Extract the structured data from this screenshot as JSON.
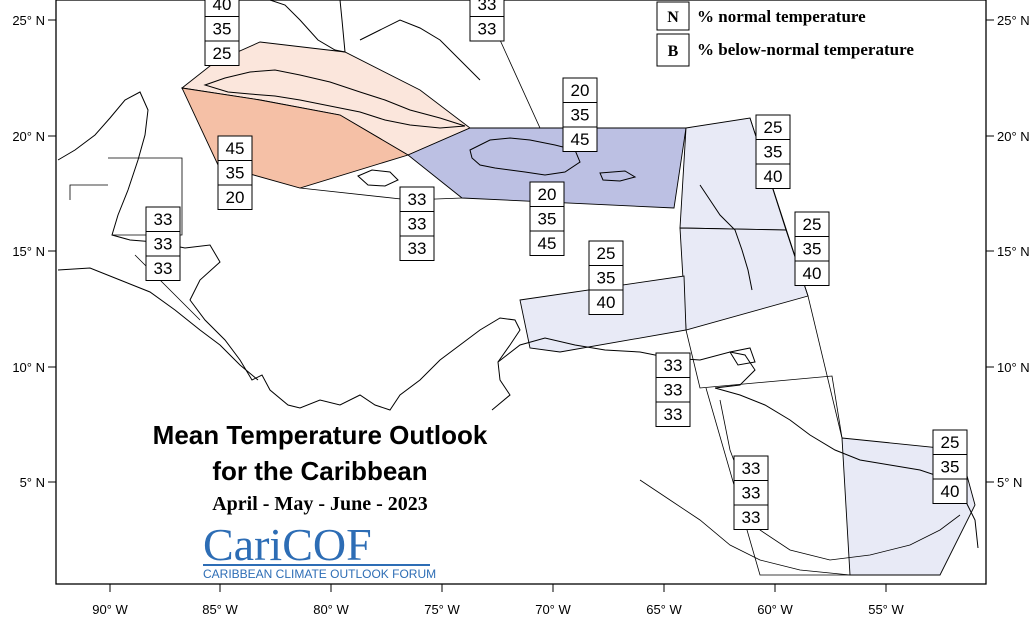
{
  "title_line1": "Mean Temperature Outlook",
  "title_line2": "for the Caribbean",
  "period": "April - May - June - 2023",
  "logo": {
    "name": "CariCOF",
    "caption": "CARIBBEAN CLIMATE OUTLOOK FORUM"
  },
  "legend": [
    {
      "key": "N",
      "label": "% normal temperature"
    },
    {
      "key": "B",
      "label": "% below-normal temperature"
    }
  ],
  "colors": {
    "above_light": "#fbe6dc",
    "above_medium": "#f5c0a6",
    "below_medium": "#bcc0e3",
    "below_light": "#e8eaf6"
  },
  "x_axis_labels": [
    "90° W",
    "85° W",
    "80° W",
    "75° W",
    "70° W",
    "65° W",
    "60° W",
    "55° W"
  ],
  "y_axis_labels": [
    "25° N",
    "20° N",
    "15° N",
    "10° N",
    "5° N"
  ],
  "probability_boxes": [
    {
      "values": [
        "40",
        "35",
        "25"
      ]
    },
    {
      "values": [
        "33",
        "33"
      ]
    },
    {
      "values": [
        "20",
        "35",
        "45"
      ]
    },
    {
      "values": [
        "45",
        "35",
        "20"
      ]
    },
    {
      "values": [
        "25",
        "35",
        "40"
      ]
    },
    {
      "values": [
        "33",
        "33",
        "33"
      ]
    },
    {
      "values": [
        "20",
        "35",
        "45"
      ]
    },
    {
      "values": [
        "33",
        "33",
        "33"
      ]
    },
    {
      "values": [
        "25",
        "35",
        "40"
      ]
    },
    {
      "values": [
        "25",
        "35",
        "40"
      ]
    },
    {
      "values": [
        "33",
        "33",
        "33"
      ]
    },
    {
      "values": [
        "33",
        "33",
        "33"
      ]
    },
    {
      "values": [
        "25",
        "35",
        "40"
      ]
    }
  ]
}
